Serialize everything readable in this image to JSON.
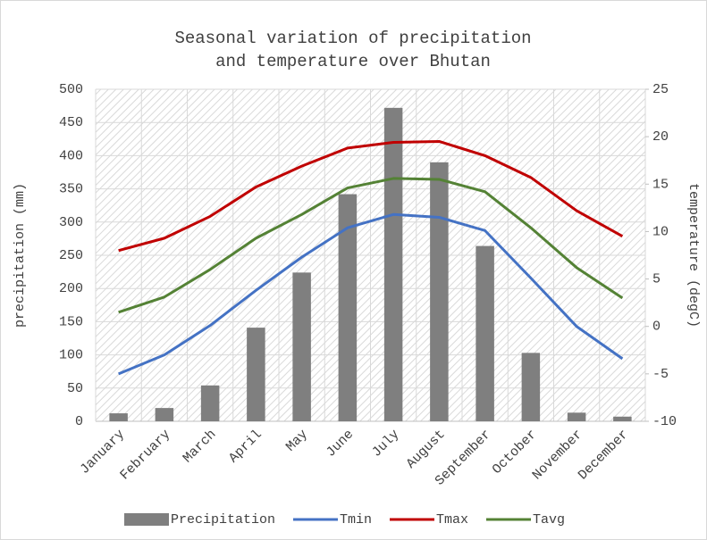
{
  "chart_data": {
    "type": "bar_line_combo",
    "title": "Seasonal variation of precipitation and temperature over Bhutan",
    "y_label": "precipitation (mm)",
    "y2_label": "temperature (degC)",
    "categories": [
      "January",
      "February",
      "March",
      "April",
      "May",
      "June",
      "July",
      "August",
      "September",
      "October",
      "November",
      "December"
    ],
    "series": [
      {
        "name": "Precipitation",
        "type": "bar",
        "color": "#7f7f7f",
        "values": [
          12,
          20,
          54,
          141,
          224,
          342,
          472,
          390,
          264,
          103,
          13,
          7
        ]
      },
      {
        "name": "Tmin",
        "type": "line",
        "axis": "y2",
        "color": "#4472c4",
        "values": [
          -5.0,
          -3.0,
          0.1,
          3.8,
          7.3,
          10.4,
          11.8,
          11.5,
          10.1,
          5.1,
          0.0,
          -3.4
        ]
      },
      {
        "name": "Tmax",
        "type": "line",
        "axis": "y2",
        "color": "#c00000",
        "values": [
          8.0,
          9.3,
          11.6,
          14.7,
          16.9,
          18.8,
          19.4,
          19.5,
          18.0,
          15.7,
          12.2,
          9.5
        ]
      },
      {
        "name": "Tavg",
        "type": "line",
        "axis": "y2",
        "color": "#548235",
        "values": [
          1.5,
          3.1,
          6.0,
          9.3,
          11.8,
          14.6,
          15.6,
          15.5,
          14.2,
          10.4,
          6.2,
          3.0
        ]
      }
    ],
    "ylim": [
      0,
      500
    ],
    "yticks": [
      0,
      50,
      100,
      150,
      200,
      250,
      300,
      350,
      400,
      450,
      500
    ],
    "y2lim": [
      -10,
      25
    ],
    "y2ticks": [
      -10,
      -5,
      0,
      5,
      10,
      15,
      20,
      25
    ],
    "grid": true,
    "legend": "bottom"
  }
}
